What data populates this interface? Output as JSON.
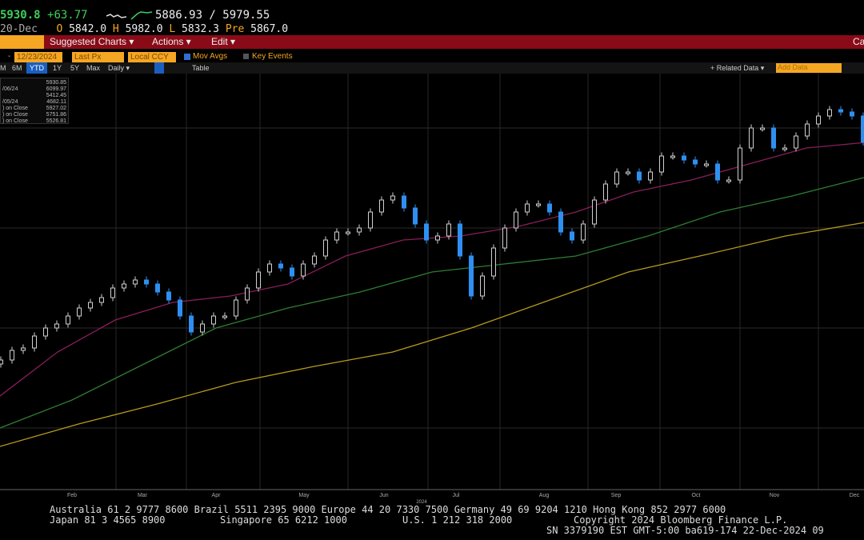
{
  "header": {
    "last": "5930.8",
    "change": "+63.77",
    "range": "5886.93 / 5979.55",
    "date": "20-Dec",
    "open_label": "O",
    "open": "5842.0",
    "high_label": "H",
    "high": "5982.0",
    "low_label": "L",
    "low": "5832.3",
    "pre_label": "Pre",
    "pre": "5867.0"
  },
  "menubar": {
    "suggested": "Suggested Charts ▾",
    "actions": "Actions ▾",
    "edit": "Edit ▾",
    "right": "Ca"
  },
  "controls": {
    "date_sep": "-",
    "end_date": "12/23/2024",
    "field": "Last Px",
    "currency": "Local CCY",
    "mov_avgs": "Mov Avgs",
    "key_events": "Key Events",
    "mov_avgs_checked": true,
    "key_events_checked": false
  },
  "periods": {
    "items": [
      "M",
      "6M",
      "YTD",
      "1Y",
      "5Y",
      "Max",
      "Daily ▾"
    ],
    "active": "YTD",
    "table": "Table",
    "related": "+ Related Data ▾",
    "add_data": "Add Data"
  },
  "legend": [
    {
      "label": "",
      "value": "5930.85"
    },
    {
      "label": "/06/24",
      "value": "6099.97"
    },
    {
      "label": "",
      "value": "5412.45"
    },
    {
      "label": "/05/24",
      "value": "4682.11"
    },
    {
      "label": ") on Close",
      "value": "5927.02"
    },
    {
      "label": ") on Close",
      "value": "5751.86"
    },
    {
      "label": ") on Close",
      "value": "5526.81"
    }
  ],
  "chart_data": {
    "type": "candlestick",
    "ylim": [
      4300,
      6200
    ],
    "grid": true,
    "x_ticks": [
      "Feb",
      "Mar",
      "Apr",
      "May",
      "Jun",
      "Jul",
      "Aug",
      "Sep",
      "Oct",
      "Nov",
      "Dec"
    ],
    "year_label": "2024",
    "colors": {
      "up": "#d0d0d0",
      "down": "#2f8ff0",
      "ma1": "#8a1e5a",
      "ma2": "#2e7d32",
      "ma3": "#b59a1c"
    },
    "closes": [
      4840,
      4888,
      4900,
      4960,
      5000,
      5020,
      5060,
      5100,
      5128,
      5152,
      5200,
      5220,
      5240,
      5220,
      5180,
      5140,
      5060,
      4980,
      5020,
      5060,
      5060,
      5140,
      5200,
      5280,
      5320,
      5300,
      5260,
      5320,
      5360,
      5440,
      5480,
      5480,
      5500,
      5580,
      5640,
      5660,
      5600,
      5520,
      5440,
      5460,
      5520,
      5360,
      5160,
      5260,
      5400,
      5500,
      5580,
      5620,
      5620,
      5580,
      5480,
      5440,
      5520,
      5640,
      5720,
      5780,
      5780,
      5740,
      5780,
      5860,
      5860,
      5840,
      5820,
      5820,
      5740,
      5740,
      5900,
      6000,
      6000,
      5900,
      5900,
      5960,
      6020,
      6060,
      6092,
      6080,
      6060,
      5930
    ],
    "moving_averages": [
      {
        "values": [
          4660,
          4880,
          5040,
          5128,
          5160,
          5220,
          5360,
          5440,
          5460,
          5508,
          5580,
          5680,
          5740,
          5820,
          5900,
          5927
        ]
      },
      {
        "values": [
          4500,
          4640,
          4820,
          5000,
          5100,
          5180,
          5280,
          5320,
          5360,
          5460,
          5580,
          5660,
          5752
        ]
      },
      {
        "values": [
          4408,
          4520,
          4620,
          4728,
          4808,
          4880,
          5000,
          5140,
          5280,
          5368,
          5460,
          5527
        ]
      }
    ]
  },
  "footer": {
    "line1": "Australia 61 2 9777 8600 Brazil 5511 2395 9000 Europe 44 20 7330 7500 Germany 49 69 9204 1210 Hong Kong 852 2977 6000",
    "line2a": "Japan 81 3 4565 8900",
    "line2b": "Singapore 65 6212 1000",
    "line2c": "U.S. 1 212 318 2000",
    "line2d": "Copyright 2024 Bloomberg Finance L.P.",
    "line3": "SN 3379190 EST  GMT-5:00 ba619-174 22-Dec-2024 09"
  }
}
